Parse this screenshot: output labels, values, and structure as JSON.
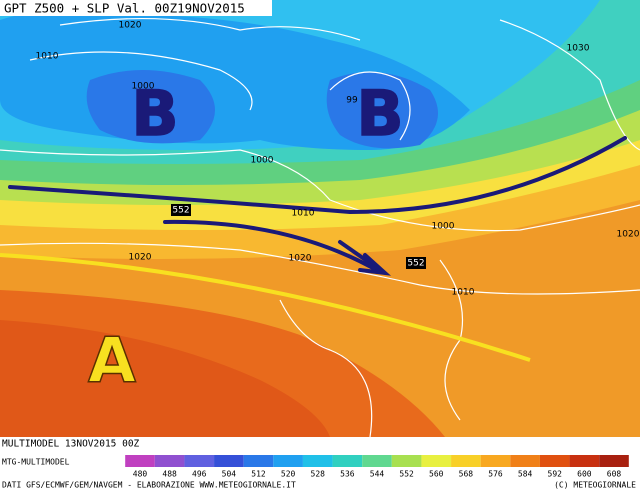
{
  "header": {
    "title": "GPT Z500 + SLP Val. 00Z19NOV2015"
  },
  "map": {
    "pressure_centers": [
      "B",
      "B",
      "A"
    ],
    "isobar_labels": [
      "1020",
      "1010",
      "1000",
      "1030",
      "99",
      "1000",
      "1010",
      "1000",
      "1020",
      "1020",
      "1010",
      "1020"
    ],
    "height_labels": [
      "552",
      "552"
    ]
  },
  "legend": {
    "values": [
      480,
      488,
      496,
      504,
      512,
      520,
      528,
      536,
      544,
      552,
      560,
      568,
      576,
      584,
      592,
      600,
      608
    ],
    "colors": [
      "#c040c0",
      "#9050d0",
      "#6060e0",
      "#3550d8",
      "#2a78e8",
      "#20a0f0",
      "#20c0e8",
      "#30d0c0",
      "#60d890",
      "#a8e050",
      "#e8f040",
      "#f8d028",
      "#f8a820",
      "#f08018",
      "#e05010",
      "#c83010",
      "#a82010"
    ]
  },
  "footer": {
    "run": "MULTIMODEL 13NOV2015 00Z",
    "model": "MTG-MULTIMODEL",
    "credits": "DATI GFS/ECMWF/GEM/NAVGEM - ELABORAZIONE WWW.METEOGIORNALE.IT",
    "copyright": "(C) METEOGIORNALE"
  }
}
